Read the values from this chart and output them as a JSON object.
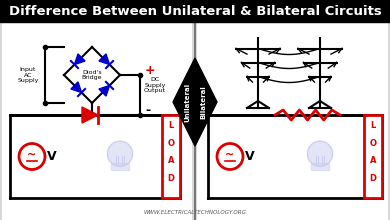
{
  "title": "Difference Between Unilateral & Bilateral Circuits",
  "title_bg": "#000000",
  "title_color": "#ffffff",
  "bg_color": "#d8d8d8",
  "divider_color": "#888888",
  "unilateral_label": "Unilateral",
  "bilateral_label": "Bilateral",
  "red": "#dd0000",
  "blue": "#0000cc",
  "black": "#000000",
  "white": "#ffffff",
  "bulb_color": "#c8ccee",
  "website": "WWW.ELECTRICALTECHNOLOGY.ORG",
  "title_fontsize": 9.5
}
